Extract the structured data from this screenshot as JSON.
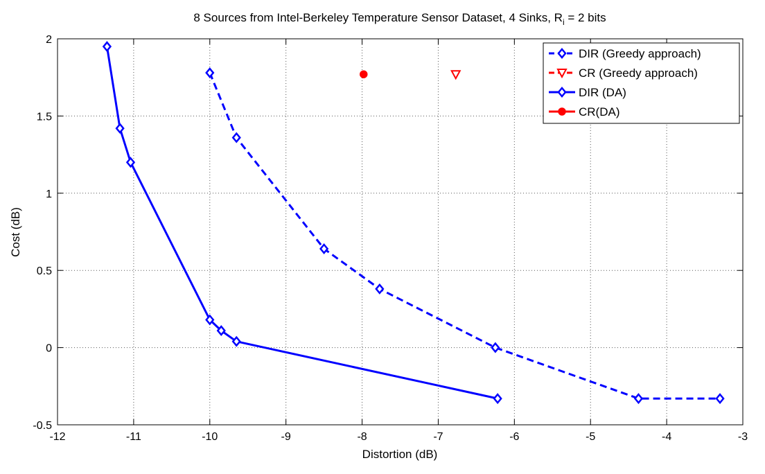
{
  "chart_data": {
    "type": "line",
    "title": "8 Sources from Intel-Berkeley Temperature Sensor Dataset, 4 Sinks, R",
    "title_subscript": "i",
    "title_suffix": " = 2 bits",
    "xlabel": "Distortion (dB)",
    "ylabel": "Cost (dB)",
    "xlim": [
      -12,
      -3
    ],
    "ylim": [
      -0.5,
      2
    ],
    "xticks": [
      -12,
      -11,
      -10,
      -9,
      -8,
      -7,
      -6,
      -5,
      -4,
      -3
    ],
    "yticks": [
      -0.5,
      0,
      0.5,
      1,
      1.5,
      2
    ],
    "xtick_labels": [
      "-12",
      "-11",
      "-10",
      "-9",
      "-8",
      "-7",
      "-6",
      "-5",
      "-4",
      "-3"
    ],
    "ytick_labels": [
      "-0.5",
      "0",
      "0.5",
      "1",
      "1.5",
      "2"
    ],
    "grid": true,
    "legend_position": "top-right",
    "series": [
      {
        "name": "DIR (Greedy approach)",
        "color": "#0000ff",
        "line_style": "dashed",
        "marker": "diamond",
        "x": [
          -10.0,
          -9.65,
          -8.5,
          -7.77,
          -6.25,
          -4.37,
          -3.3
        ],
        "y": [
          1.78,
          1.36,
          0.64,
          0.38,
          0.0,
          -0.33,
          -0.33
        ]
      },
      {
        "name": "CR (Greedy approach)",
        "color": "#ff0000",
        "line_style": "dashed",
        "marker": "triangle-down",
        "x": [
          -6.77
        ],
        "y": [
          1.77
        ]
      },
      {
        "name": "DIR (DA)",
        "color": "#0000ff",
        "line_style": "solid",
        "marker": "diamond",
        "x": [
          -11.35,
          -11.18,
          -11.04,
          -10.0,
          -9.85,
          -9.65,
          -6.22
        ],
        "y": [
          1.95,
          1.42,
          1.2,
          0.18,
          0.11,
          0.04,
          -0.33
        ]
      },
      {
        "name": "CR(DA)",
        "color": "#ff0000",
        "line_style": "solid",
        "marker": "circle",
        "x": [
          -7.98
        ],
        "y": [
          1.77
        ]
      }
    ]
  }
}
